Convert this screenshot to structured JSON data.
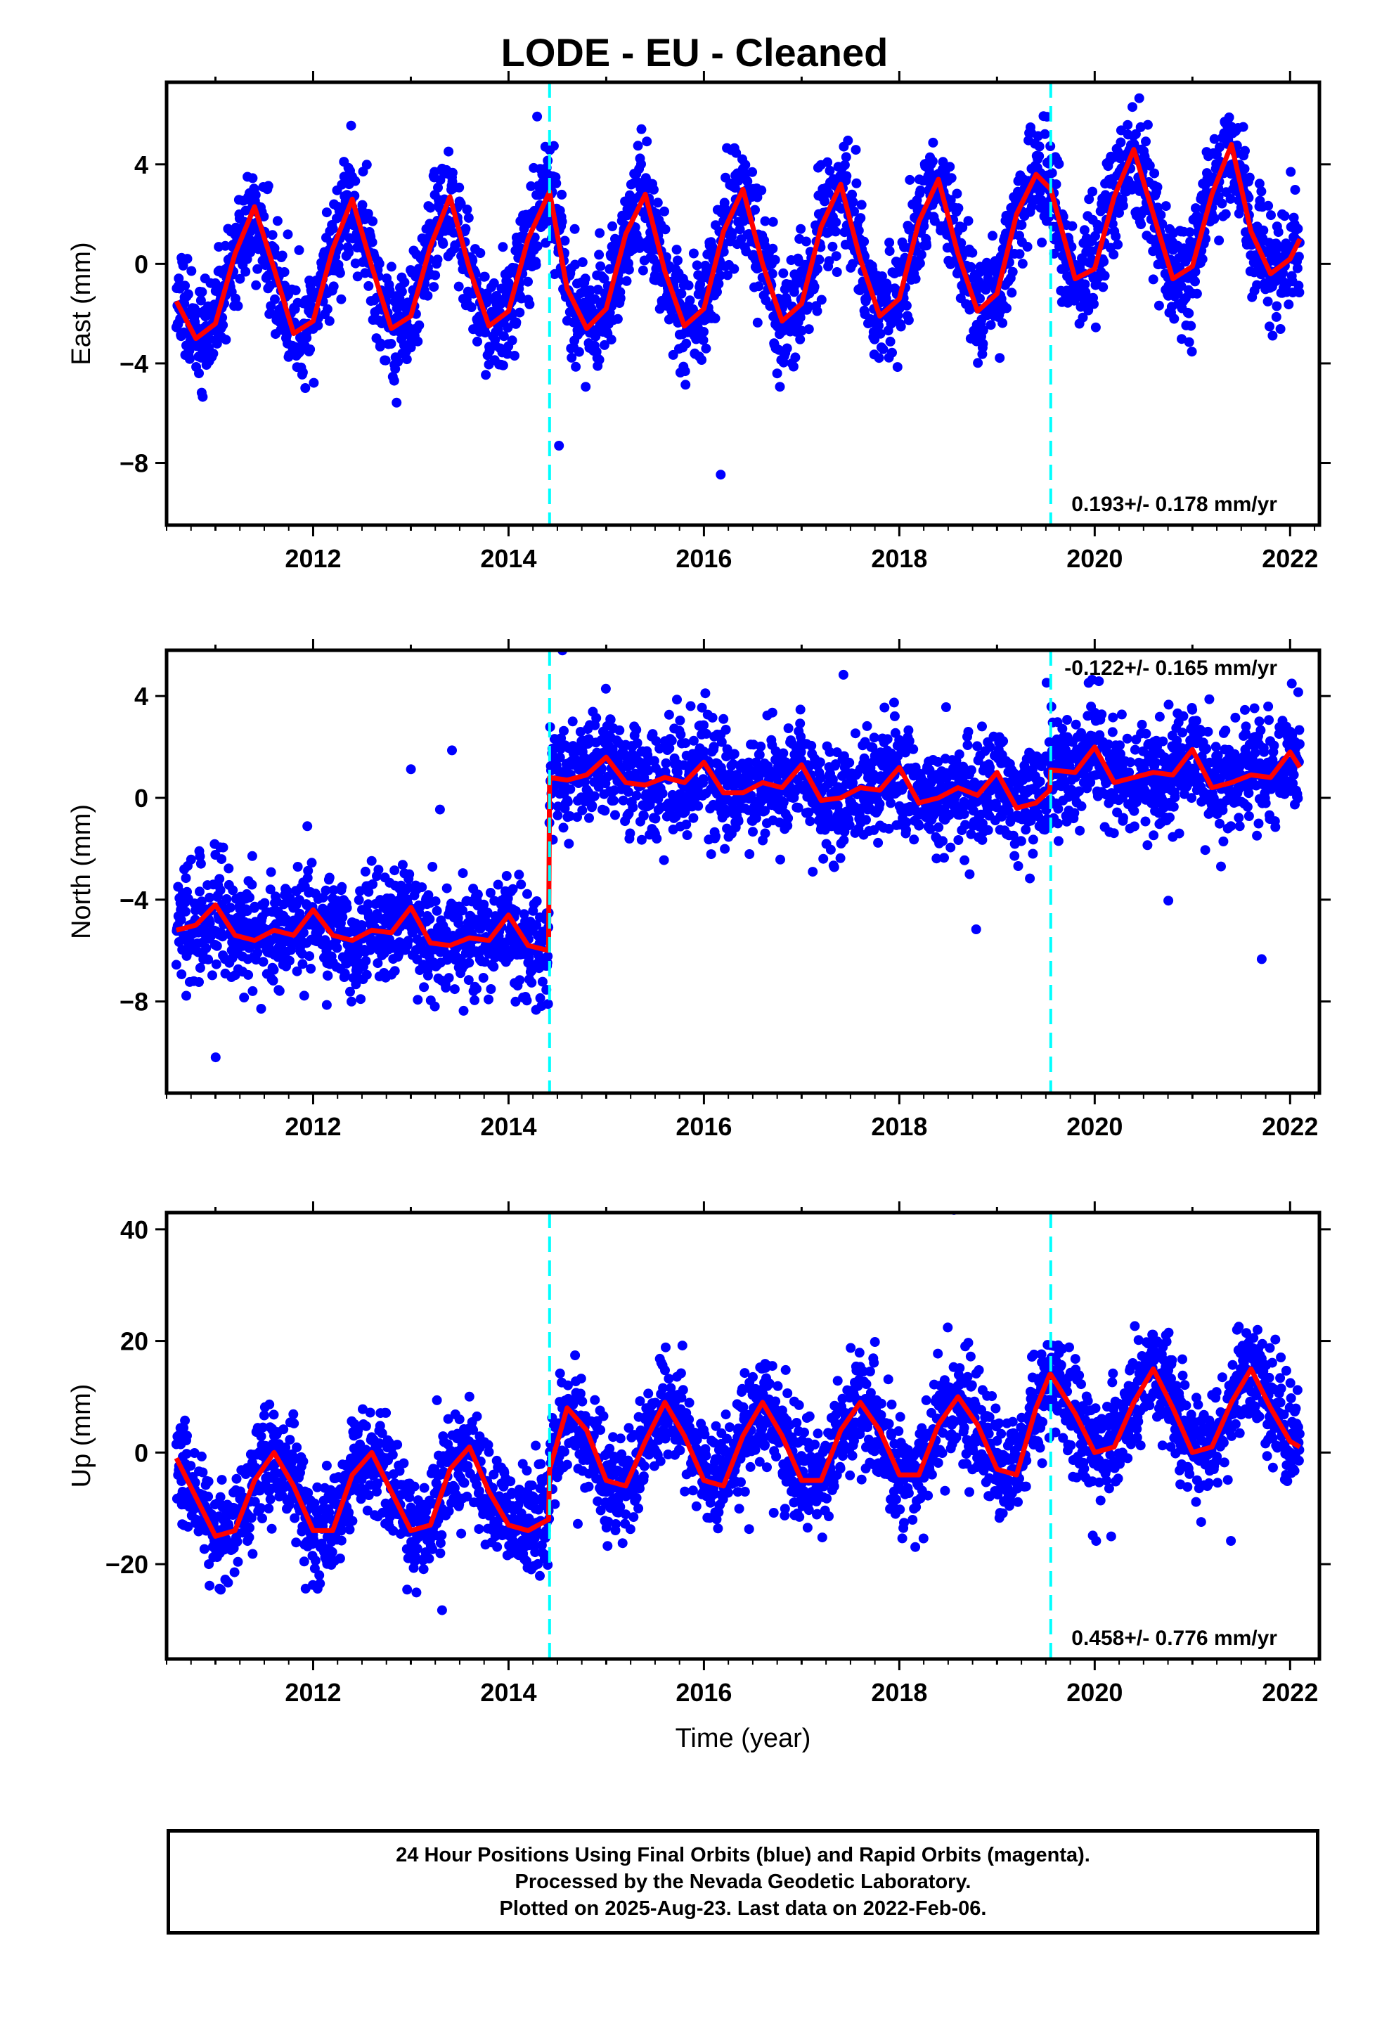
{
  "title": "LODE  - EU - Cleaned",
  "xlabel": "Time (year)",
  "footer": {
    "line1": "24 Hour Positions Using Final Orbits (blue) and Rapid Orbits (magenta).",
    "line2": "Processed by the Nevada Geodetic Laboratory.",
    "line3": "Plotted on 2025-Aug-23. Last data on 2022-Feb-06."
  },
  "colors": {
    "data": "#0000ff",
    "model": "#ff0000",
    "steps": "#00ffff"
  },
  "chart_data": [
    {
      "type": "scatter",
      "ylabel": "East (mm)",
      "xlim": [
        2010.5,
        2022.3
      ],
      "ylim": [
        -10.5,
        7.3
      ],
      "xticks": [
        2012,
        2014,
        2016,
        2018,
        2020,
        2022
      ],
      "yticks": [
        -8,
        -4,
        0,
        4
      ],
      "ytick_labels": [
        "−8",
        "−4",
        "0",
        "4"
      ],
      "rate_label": "0.193+/- 0.178 mm/yr",
      "rate_position": "bottom-right",
      "step_epochs": [
        2014.42,
        2019.55
      ],
      "model_curve": {
        "x": [
          2010.6,
          2010.8,
          2011.0,
          2011.2,
          2011.4,
          2011.6,
          2011.8,
          2012.0,
          2012.2,
          2012.4,
          2012.6,
          2012.8,
          2013.0,
          2013.2,
          2013.4,
          2013.6,
          2013.8,
          2014.0,
          2014.2,
          2014.42,
          2014.6,
          2014.8,
          2015.0,
          2015.2,
          2015.4,
          2015.6,
          2015.8,
          2016.0,
          2016.2,
          2016.4,
          2016.6,
          2016.8,
          2017.0,
          2017.2,
          2017.4,
          2017.6,
          2017.8,
          2018.0,
          2018.2,
          2018.4,
          2018.6,
          2018.8,
          2019.0,
          2019.2,
          2019.4,
          2019.55,
          2019.8,
          2020.0,
          2020.2,
          2020.4,
          2020.6,
          2020.8,
          2021.0,
          2021.2,
          2021.4,
          2021.6,
          2021.8,
          2022.0,
          2022.1
        ],
        "y": [
          -1.5,
          -3.0,
          -2.4,
          0.4,
          2.3,
          -0.2,
          -2.8,
          -2.3,
          0.6,
          2.6,
          -0.1,
          -2.6,
          -2.1,
          0.7,
          2.7,
          -0.2,
          -2.5,
          -1.9,
          1.0,
          2.9,
          -1.0,
          -2.6,
          -1.8,
          1.2,
          2.8,
          -0.3,
          -2.5,
          -1.8,
          1.3,
          3.0,
          0.0,
          -2.3,
          -1.6,
          1.5,
          3.2,
          0.2,
          -2.1,
          -1.4,
          1.7,
          3.4,
          0.4,
          -1.9,
          -1.2,
          2.0,
          3.6,
          3.0,
          -0.6,
          -0.2,
          2.7,
          4.6,
          2.0,
          -0.6,
          -0.1,
          2.8,
          4.8,
          1.3,
          -0.4,
          0.2,
          1.0
        ]
      },
      "scatter_params": {
        "amplitude": 2.7,
        "noise": 1.1,
        "phase": 0.38,
        "trend_start": -0.5,
        "trend": 0.19,
        "seed": 11
      }
    },
    {
      "type": "scatter",
      "ylabel": "North (mm)",
      "xlim": [
        2010.5,
        2022.3
      ],
      "ylim": [
        -11.6,
        5.8
      ],
      "xticks": [
        2012,
        2014,
        2016,
        2018,
        2020,
        2022
      ],
      "yticks": [
        -8,
        -4,
        0,
        4
      ],
      "ytick_labels": [
        "−8",
        "−4",
        "0",
        "4"
      ],
      "rate_label": "-0.122+/- 0.165 mm/yr",
      "rate_position": "top-right",
      "step_epochs": [
        2014.42,
        2019.55
      ],
      "model_curve": {
        "x": [
          2010.6,
          2010.8,
          2011.0,
          2011.2,
          2011.4,
          2011.6,
          2011.8,
          2012.0,
          2012.2,
          2012.4,
          2012.6,
          2012.8,
          2013.0,
          2013.2,
          2013.4,
          2013.6,
          2013.8,
          2014.0,
          2014.2,
          2014.41,
          2014.42,
          2014.6,
          2014.8,
          2015.0,
          2015.2,
          2015.4,
          2015.6,
          2015.8,
          2016.0,
          2016.2,
          2016.4,
          2016.6,
          2016.8,
          2017.0,
          2017.2,
          2017.4,
          2017.6,
          2017.8,
          2018.0,
          2018.2,
          2018.4,
          2018.6,
          2018.8,
          2019.0,
          2019.2,
          2019.4,
          2019.54,
          2019.55,
          2019.8,
          2020.0,
          2020.2,
          2020.4,
          2020.6,
          2020.8,
          2021.0,
          2021.2,
          2021.4,
          2021.6,
          2021.8,
          2022.0,
          2022.1
        ],
        "y": [
          -5.2,
          -5.0,
          -4.2,
          -5.4,
          -5.6,
          -5.2,
          -5.4,
          -4.4,
          -5.4,
          -5.6,
          -5.2,
          -5.3,
          -4.3,
          -5.7,
          -5.8,
          -5.5,
          -5.6,
          -4.6,
          -5.8,
          -6.0,
          0.8,
          0.7,
          0.9,
          1.6,
          0.6,
          0.5,
          0.8,
          0.6,
          1.4,
          0.2,
          0.2,
          0.6,
          0.4,
          1.3,
          -0.1,
          0.0,
          0.4,
          0.3,
          1.2,
          -0.2,
          0.0,
          0.4,
          0.1,
          1.0,
          -0.4,
          -0.2,
          0.3,
          1.1,
          1.0,
          2.0,
          0.6,
          0.8,
          1.0,
          0.9,
          1.9,
          0.4,
          0.6,
          0.9,
          0.8,
          1.8,
          1.2
        ]
      },
      "scatter_params": {
        "amplitude": 0.6,
        "noise": 1.05,
        "phase": 0.9,
        "trend_start": -5.2,
        "trend": 0.0,
        "offset_after_step": 5.8,
        "seed": 23
      }
    },
    {
      "type": "scatter",
      "ylabel": "Up (mm)",
      "xlim": [
        2010.5,
        2022.3
      ],
      "ylim": [
        -37,
        43
      ],
      "xticks": [
        2012,
        2014,
        2016,
        2018,
        2020,
        2022
      ],
      "yticks": [
        -20,
        0,
        20,
        40
      ],
      "ytick_labels": [
        "−20",
        "0",
        "20",
        "40"
      ],
      "rate_label": "0.458+/- 0.776 mm/yr",
      "rate_position": "bottom-right",
      "step_epochs": [
        2014.42,
        2019.55
      ],
      "model_curve": {
        "x": [
          2010.6,
          2010.8,
          2011.0,
          2011.2,
          2011.4,
          2011.6,
          2011.8,
          2012.0,
          2012.2,
          2012.4,
          2012.6,
          2012.8,
          2013.0,
          2013.2,
          2013.4,
          2013.6,
          2013.8,
          2014.0,
          2014.2,
          2014.41,
          2014.42,
          2014.6,
          2014.8,
          2015.0,
          2015.2,
          2015.4,
          2015.6,
          2015.8,
          2016.0,
          2016.2,
          2016.4,
          2016.6,
          2016.8,
          2017.0,
          2017.2,
          2017.4,
          2017.6,
          2017.8,
          2018.0,
          2018.2,
          2018.4,
          2018.6,
          2018.8,
          2019.0,
          2019.2,
          2019.4,
          2019.54,
          2019.55,
          2019.8,
          2020.0,
          2020.2,
          2020.4,
          2020.6,
          2020.8,
          2021.0,
          2021.2,
          2021.4,
          2021.6,
          2021.8,
          2022.0,
          2022.1
        ],
        "y": [
          -1,
          -8,
          -15,
          -14,
          -5,
          0,
          -6,
          -14,
          -14,
          -4,
          0,
          -7,
          -14,
          -13,
          -3,
          1,
          -7,
          -13,
          -14,
          -12,
          -3,
          8,
          4,
          -5,
          -6,
          2,
          9,
          3,
          -5,
          -6,
          3,
          9,
          3,
          -5,
          -5,
          4,
          9,
          4,
          -4,
          -4,
          5,
          10,
          5,
          -3,
          -4,
          8,
          14,
          14,
          7,
          0,
          1,
          9,
          15,
          8,
          0,
          1,
          9,
          15,
          8,
          2,
          1
        ]
      },
      "scatter_params": {
        "amplitude": 7.5,
        "noise": 4.6,
        "phase": 0.6,
        "trend_start": -7.5,
        "trend": 0.46,
        "offset_after_step": 8.0,
        "seed": 37
      }
    }
  ]
}
